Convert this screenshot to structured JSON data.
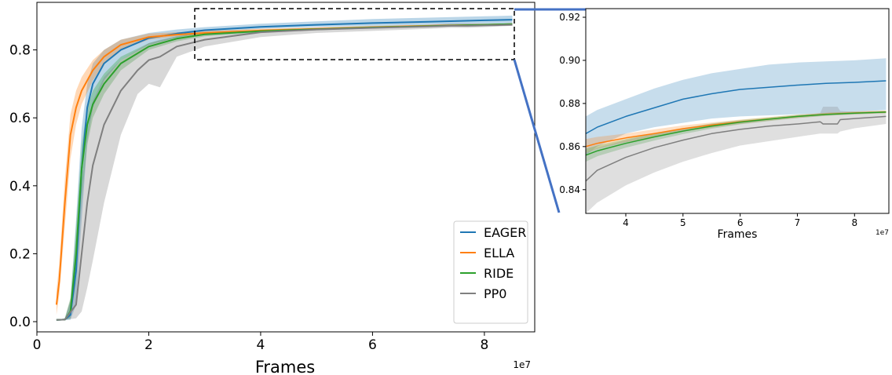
{
  "chart_data": [
    {
      "type": "line",
      "panel": "main",
      "xlabel": "Frames",
      "xscale_label": "1e7",
      "xlim": [
        0,
        8.9
      ],
      "ylim": [
        -0.03,
        0.94
      ],
      "xticks": [
        0,
        2,
        4,
        6,
        8
      ],
      "yticks": [
        0.0,
        0.2,
        0.4,
        0.6,
        0.8
      ],
      "xticklabels": [
        "0",
        "2",
        "4",
        "6",
        "8"
      ],
      "yticklabels": [
        "0.0",
        "0.2",
        "0.4",
        "0.6",
        "0.8"
      ],
      "legend_position": "lower-right",
      "grid": false,
      "series": [
        {
          "name": "EAGER",
          "color": "#1f77b4",
          "x": [
            0.35,
            0.5,
            0.6,
            0.7,
            0.8,
            0.9,
            1.0,
            1.2,
            1.5,
            2.0,
            2.5,
            3.0,
            4.0,
            5.0,
            6.0,
            7.0,
            8.0,
            8.5
          ],
          "y": [
            0.005,
            0.006,
            0.02,
            0.15,
            0.45,
            0.63,
            0.7,
            0.76,
            0.8,
            0.835,
            0.848,
            0.858,
            0.868,
            0.874,
            0.879,
            0.883,
            0.887,
            0.889
          ],
          "lower": [
            0.005,
            0.005,
            0.005,
            0.05,
            0.3,
            0.53,
            0.63,
            0.71,
            0.77,
            0.815,
            0.836,
            0.85,
            0.862,
            0.868,
            0.871,
            0.874,
            0.876,
            0.877
          ],
          "upper": [
            0.005,
            0.01,
            0.06,
            0.3,
            0.57,
            0.7,
            0.76,
            0.8,
            0.83,
            0.85,
            0.86,
            0.867,
            0.877,
            0.884,
            0.891,
            0.895,
            0.899,
            0.901
          ]
        },
        {
          "name": "ELLA",
          "color": "#ff7f0e",
          "x": [
            0.35,
            0.4,
            0.5,
            0.6,
            0.7,
            0.8,
            1.0,
            1.2,
            1.5,
            2.0,
            2.5,
            3.0,
            4.0,
            5.0,
            6.0,
            7.0,
            8.0,
            8.5
          ],
          "y": [
            0.05,
            0.12,
            0.35,
            0.55,
            0.63,
            0.68,
            0.74,
            0.78,
            0.815,
            0.838,
            0.845,
            0.85,
            0.857,
            0.862,
            0.867,
            0.871,
            0.874,
            0.876
          ],
          "lower": [
            0.02,
            0.08,
            0.28,
            0.48,
            0.58,
            0.64,
            0.71,
            0.76,
            0.8,
            0.83,
            0.84,
            0.845,
            0.853,
            0.859,
            0.864,
            0.868,
            0.872,
            0.874
          ],
          "upper": [
            0.09,
            0.17,
            0.42,
            0.61,
            0.68,
            0.72,
            0.77,
            0.8,
            0.83,
            0.848,
            0.852,
            0.856,
            0.862,
            0.866,
            0.87,
            0.874,
            0.877,
            0.878
          ]
        },
        {
          "name": "RIDE",
          "color": "#2ca02c",
          "x": [
            0.35,
            0.5,
            0.6,
            0.7,
            0.8,
            0.9,
            1.0,
            1.2,
            1.5,
            2.0,
            2.5,
            3.0,
            4.0,
            5.0,
            6.0,
            7.0,
            8.0,
            8.5
          ],
          "y": [
            0.005,
            0.006,
            0.03,
            0.2,
            0.45,
            0.58,
            0.64,
            0.7,
            0.76,
            0.81,
            0.833,
            0.846,
            0.855,
            0.861,
            0.866,
            0.87,
            0.874,
            0.876
          ],
          "lower": [
            0.005,
            0.005,
            0.01,
            0.12,
            0.36,
            0.52,
            0.6,
            0.67,
            0.74,
            0.8,
            0.825,
            0.84,
            0.851,
            0.858,
            0.863,
            0.868,
            0.872,
            0.874
          ],
          "upper": [
            0.005,
            0.01,
            0.07,
            0.28,
            0.52,
            0.63,
            0.68,
            0.73,
            0.78,
            0.82,
            0.84,
            0.851,
            0.859,
            0.864,
            0.869,
            0.872,
            0.876,
            0.878
          ]
        },
        {
          "name": "PP0",
          "color": "#7f7f7f",
          "x": [
            0.35,
            0.5,
            0.7,
            0.8,
            0.9,
            1.0,
            1.2,
            1.5,
            1.8,
            2.0,
            2.2,
            2.5,
            3.0,
            4.0,
            5.0,
            6.0,
            7.0,
            7.4,
            7.7,
            8.0,
            8.5
          ],
          "y": [
            0.005,
            0.006,
            0.05,
            0.2,
            0.35,
            0.46,
            0.58,
            0.68,
            0.74,
            0.77,
            0.78,
            0.81,
            0.83,
            0.852,
            0.86,
            0.865,
            0.869,
            0.871,
            0.871,
            0.872,
            0.874
          ],
          "lower": [
            0.005,
            0.005,
            0.01,
            0.03,
            0.1,
            0.18,
            0.35,
            0.55,
            0.67,
            0.7,
            0.69,
            0.78,
            0.81,
            0.838,
            0.85,
            0.856,
            0.862,
            0.865,
            0.865,
            0.867,
            0.871
          ],
          "upper": [
            0.005,
            0.01,
            0.12,
            0.4,
            0.55,
            0.65,
            0.72,
            0.77,
            0.8,
            0.82,
            0.83,
            0.84,
            0.847,
            0.86,
            0.866,
            0.871,
            0.874,
            0.878,
            0.878,
            0.876,
            0.877
          ]
        }
      ]
    },
    {
      "type": "line",
      "panel": "zoom-inset",
      "xlabel": "Frames",
      "xscale_label": "1e7",
      "xlim": [
        3.3,
        8.6
      ],
      "ylim": [
        0.829,
        0.924
      ],
      "xticks": [
        4,
        5,
        6,
        7,
        8
      ],
      "yticks": [
        0.84,
        0.86,
        0.88,
        0.9,
        0.92
      ],
      "xticklabels": [
        "4",
        "5",
        "6",
        "7",
        "8"
      ],
      "yticklabels": [
        "0.84",
        "0.86",
        "0.88",
        "0.90",
        "0.92"
      ],
      "grid": false,
      "series": [
        {
          "name": "EAGER",
          "color": "#1f77b4",
          "x": [
            3.3,
            3.5,
            4.0,
            4.5,
            5.0,
            5.5,
            6.0,
            6.5,
            7.0,
            7.5,
            8.0,
            8.55
          ],
          "y": [
            0.866,
            0.869,
            0.874,
            0.878,
            0.882,
            0.8845,
            0.8865,
            0.8875,
            0.8885,
            0.8893,
            0.8898,
            0.8905
          ],
          "lower": [
            0.856,
            0.86,
            0.866,
            0.869,
            0.871,
            0.873,
            0.874,
            0.8745,
            0.875,
            0.8755,
            0.876,
            0.877
          ],
          "upper": [
            0.874,
            0.877,
            0.882,
            0.887,
            0.891,
            0.894,
            0.896,
            0.898,
            0.899,
            0.8995,
            0.9,
            0.901
          ]
        },
        {
          "name": "ELLA",
          "color": "#ff7f0e",
          "x": [
            3.3,
            3.5,
            4.0,
            4.5,
            5.0,
            5.5,
            6.0,
            6.5,
            7.0,
            7.5,
            8.0,
            8.55
          ],
          "y": [
            0.86,
            0.8615,
            0.864,
            0.866,
            0.8683,
            0.87,
            0.8715,
            0.8728,
            0.874,
            0.875,
            0.8756,
            0.876
          ],
          "lower": [
            0.857,
            0.859,
            0.862,
            0.8645,
            0.867,
            0.8688,
            0.8705,
            0.872,
            0.8733,
            0.8744,
            0.875,
            0.8755
          ],
          "upper": [
            0.8635,
            0.8645,
            0.866,
            0.868,
            0.8698,
            0.8712,
            0.8725,
            0.8737,
            0.8748,
            0.8757,
            0.8763,
            0.8768
          ]
        },
        {
          "name": "RIDE",
          "color": "#2ca02c",
          "x": [
            3.3,
            3.5,
            4.0,
            4.5,
            5.0,
            5.5,
            6.0,
            6.5,
            7.0,
            7.5,
            8.0,
            8.55
          ],
          "y": [
            0.856,
            0.858,
            0.8615,
            0.8645,
            0.8672,
            0.8695,
            0.8713,
            0.8727,
            0.874,
            0.8749,
            0.8755,
            0.876
          ],
          "lower": [
            0.853,
            0.8555,
            0.8595,
            0.8628,
            0.8658,
            0.8683,
            0.8703,
            0.8718,
            0.8732,
            0.8742,
            0.8749,
            0.8755
          ],
          "upper": [
            0.859,
            0.8605,
            0.8635,
            0.8662,
            0.8686,
            0.8707,
            0.8723,
            0.8736,
            0.8748,
            0.8756,
            0.8761,
            0.8766
          ]
        },
        {
          "name": "PP0",
          "color": "#7f7f7f",
          "x": [
            3.3,
            3.5,
            4.0,
            4.5,
            5.0,
            5.5,
            6.0,
            6.5,
            7.0,
            7.4,
            7.45,
            7.7,
            7.75,
            8.0,
            8.55
          ],
          "y": [
            0.844,
            0.849,
            0.855,
            0.8595,
            0.863,
            0.866,
            0.868,
            0.8695,
            0.8705,
            0.8715,
            0.8705,
            0.8705,
            0.8725,
            0.873,
            0.874
          ],
          "lower": [
            0.829,
            0.834,
            0.842,
            0.848,
            0.853,
            0.857,
            0.8605,
            0.8625,
            0.8645,
            0.866,
            0.866,
            0.866,
            0.867,
            0.8685,
            0.8705
          ],
          "upper": [
            0.857,
            0.8595,
            0.863,
            0.866,
            0.8685,
            0.8705,
            0.872,
            0.873,
            0.8745,
            0.8755,
            0.8785,
            0.8785,
            0.8765,
            0.876,
            0.8765
          ]
        }
      ]
    }
  ]
}
